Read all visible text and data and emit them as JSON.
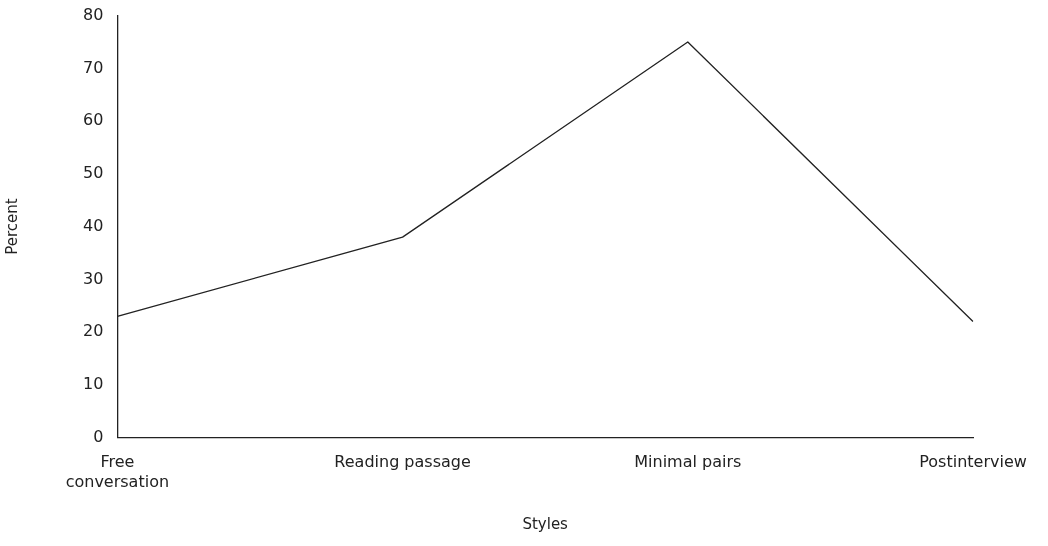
{
  "chart_data": {
    "type": "line",
    "xlabel": "Styles",
    "ylabel": "Percent",
    "categories": [
      "Free conversation",
      "Reading passage",
      "Minimal pairs",
      "Postinterview"
    ],
    "series": [
      {
        "color": "#222222",
        "values": [
          23,
          38,
          75,
          22
        ]
      }
    ],
    "ylim": [
      0,
      80
    ],
    "yticks": [
      0,
      10,
      20,
      30,
      40,
      50,
      60,
      70,
      80
    ],
    "grid": false,
    "legend": false,
    "marker": "none",
    "line_style": "solid"
  }
}
